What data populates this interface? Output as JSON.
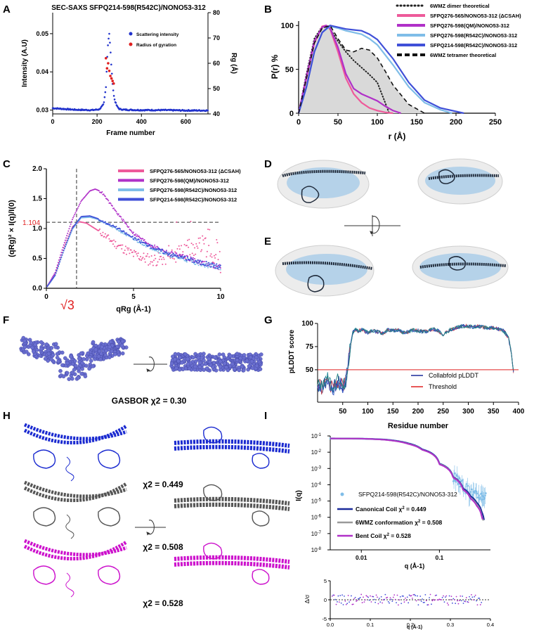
{
  "colors": {
    "blue": "#2233cc",
    "red": "#e02020",
    "pink": "#ee5a9a",
    "magenta": "#b030c8",
    "light_blue": "#7fbde8",
    "royal": "#4050d8",
    "navy": "#1a2a9a",
    "gray": "#888888",
    "fill": "#d9d9d9",
    "dark": "#333333",
    "molblue": "#a8cce8"
  },
  "panels": {
    "A": "A",
    "B": "B",
    "C": "C",
    "D": "D",
    "E": "E",
    "F": "F",
    "G": "G",
    "H": "H",
    "I": "I"
  },
  "chart_data": [
    {
      "id": "A",
      "type": "line",
      "title": "SEC-SAXS SFPQ214-598(R542C)/NONO53-312",
      "xlabel": "Frame number",
      "ylabel": "Intensity (A.U)",
      "y2label": "Rg (Å)",
      "xlim": [
        0,
        700
      ],
      "ylim": [
        0.029,
        0.0555
      ],
      "y2lim": [
        40,
        80
      ],
      "xticks": [
        "0",
        "200",
        "400",
        "600"
      ],
      "yticks": [
        "0.03",
        "0.04",
        "0.05"
      ],
      "y2ticks": [
        "40",
        "50",
        "60",
        "70",
        "80"
      ],
      "legend": [
        "Scattering intensity",
        "Radius of gyration"
      ],
      "series": [
        {
          "name": "Scattering intensity",
          "x": [
            0,
            100,
            180,
            210,
            230,
            240,
            245,
            250,
            255,
            260,
            265,
            270,
            275,
            280,
            290,
            300,
            320,
            400,
            500,
            600,
            700
          ],
          "y": [
            0.0305,
            0.0301,
            0.03,
            0.0302,
            0.0315,
            0.036,
            0.043,
            0.048,
            0.05,
            0.046,
            0.041,
            0.037,
            0.034,
            0.0325,
            0.031,
            0.0303,
            0.0301,
            0.03,
            0.03,
            0.0299,
            0.0299
          ]
        },
        {
          "name": "Radius of gyration",
          "x": [
            240,
            245,
            250,
            255,
            260,
            265,
            270,
            275
          ],
          "y": [
            62,
            58,
            60,
            57,
            55,
            54,
            53,
            52
          ]
        }
      ]
    },
    {
      "id": "B",
      "type": "area",
      "xlabel": "r (Å)",
      "ylabel": "P(r) %",
      "xlim": [
        0,
        250
      ],
      "ylim": [
        0,
        105
      ],
      "xticks": [
        "0",
        "50",
        "100",
        "150",
        "200",
        "250"
      ],
      "yticks": [
        "0",
        "50",
        "100"
      ],
      "series": [
        {
          "name": "6WMZ dimer theoretical",
          "x": [
            0,
            10,
            20,
            30,
            40,
            50,
            60,
            70,
            80,
            90,
            100,
            110,
            115
          ],
          "y": [
            0,
            45,
            85,
            99,
            96,
            82,
            70,
            60,
            52,
            44,
            35,
            12,
            0
          ]
        },
        {
          "name": "SFPQ276-565/NONO53-312 (ΔCSAH)",
          "x": [
            0,
            10,
            20,
            30,
            35,
            40,
            50,
            60,
            70,
            80,
            90,
            100,
            110,
            120
          ],
          "y": [
            0,
            40,
            80,
            99,
            100,
            96,
            70,
            40,
            22,
            12,
            6,
            3,
            1,
            0
          ]
        },
        {
          "name": "SFPQ276-598(QM)/NONO53-312",
          "x": [
            0,
            10,
            20,
            30,
            35,
            40,
            50,
            60,
            70,
            80,
            90,
            100,
            110,
            120,
            130
          ],
          "y": [
            0,
            42,
            82,
            98,
            100,
            97,
            75,
            45,
            28,
            22,
            18,
            14,
            8,
            3,
            0
          ]
        },
        {
          "name": "SFPQ276-598(R542C)/NONO53-312",
          "x": [
            0,
            10,
            20,
            30,
            40,
            50,
            60,
            70,
            80,
            90,
            100,
            120,
            140,
            160,
            180,
            195
          ],
          "y": [
            0,
            30,
            70,
            92,
            99,
            97,
            94,
            92,
            90,
            85,
            78,
            55,
            30,
            12,
            4,
            0
          ]
        },
        {
          "name": "SFPQ214-598(R542C)/NONO53-312",
          "x": [
            0,
            10,
            20,
            30,
            40,
            50,
            60,
            70,
            80,
            90,
            100,
            120,
            140,
            160,
            180,
            200,
            210
          ],
          "y": [
            0,
            30,
            70,
            92,
            100,
            98,
            96,
            95,
            94,
            90,
            84,
            62,
            35,
            15,
            6,
            2,
            0
          ]
        },
        {
          "name": "6WMZ tetramer theoretical",
          "x": [
            0,
            10,
            20,
            30,
            40,
            50,
            60,
            70,
            80,
            90,
            100,
            110,
            120,
            140,
            160
          ],
          "y": [
            0,
            40,
            80,
            97,
            100,
            85,
            72,
            70,
            74,
            72,
            63,
            48,
            32,
            10,
            0
          ]
        }
      ]
    },
    {
      "id": "C",
      "type": "scatter",
      "xlabel": "qRg (Å-1)",
      "ylabel": "(qRg)² × I(q)/I(0)",
      "xlim": [
        0,
        10
      ],
      "ylim": [
        0,
        2.0
      ],
      "xticks": [
        "0",
        "5",
        "10"
      ],
      "yticks": [
        "0.0",
        "0.5",
        "1.0",
        "1.5",
        "2.0"
      ],
      "annotations": {
        "hline_value": "1.104",
        "vline_label": "√3"
      },
      "series": [
        {
          "name": "SFPQ276-565/NONO53-312 (ΔCSAH)",
          "x": [
            0,
            0.5,
            1,
            1.5,
            1.9,
            2.3,
            3,
            4,
            5,
            6,
            7,
            8,
            9,
            10
          ],
          "y": [
            0,
            0.22,
            0.67,
            1.02,
            1.104,
            1.08,
            0.95,
            0.72,
            0.55,
            0.45,
            0.48,
            0.6,
            0.7,
            0.4
          ]
        },
        {
          "name": "SFPQ276-598(QM)/NONO53-312",
          "x": [
            0,
            0.5,
            1,
            1.5,
            2,
            2.5,
            2.8,
            3.2,
            4,
            5,
            6,
            7,
            8,
            9,
            10
          ],
          "y": [
            0,
            0.25,
            0.72,
            1.15,
            1.45,
            1.62,
            1.65,
            1.6,
            1.28,
            0.92,
            0.72,
            0.6,
            0.52,
            0.42,
            0.35
          ]
        },
        {
          "name": "SFPQ276-598(R542C)/NONO53-312",
          "x": [
            0,
            0.5,
            1,
            1.5,
            2,
            2.5,
            3,
            4,
            5,
            6,
            7,
            8,
            9,
            10
          ],
          "y": [
            0,
            0.2,
            0.62,
            0.98,
            1.17,
            1.18,
            1.14,
            1.0,
            0.82,
            0.68,
            0.56,
            0.48,
            0.4,
            0.35
          ]
        },
        {
          "name": "SFPQ214-598(R542C)/NONO53-312",
          "x": [
            0,
            0.5,
            1,
            1.5,
            2,
            2.5,
            3,
            4,
            5,
            6,
            7,
            8,
            9,
            10
          ],
          "y": [
            0,
            0.21,
            0.63,
            1.0,
            1.19,
            1.2,
            1.15,
            1.02,
            0.84,
            0.7,
            0.58,
            0.5,
            0.42,
            0.36
          ]
        }
      ]
    },
    {
      "id": "G",
      "type": "line",
      "xlabel": "Residue number",
      "ylabel": "pLDDT score",
      "xlim": [
        0,
        400
      ],
      "ylim": [
        15,
        100
      ],
      "xticks": [
        "50",
        "100",
        "150",
        "200",
        "250",
        "300",
        "350",
        "400"
      ],
      "yticks": [
        "50",
        "75",
        "100"
      ],
      "legend": [
        "Collabfold pLDDT",
        "Threshold"
      ],
      "series": [
        {
          "name": "Collabfold pLDDT",
          "x": [
            0,
            10,
            20,
            30,
            40,
            50,
            55,
            60,
            65,
            70,
            75,
            80,
            90,
            100,
            110,
            120,
            130,
            140,
            150,
            160,
            170,
            180,
            190,
            200,
            210,
            220,
            230,
            240,
            250,
            260,
            270,
            280,
            290,
            300,
            310,
            320,
            330,
            340,
            350,
            360,
            370,
            380,
            385,
            390
          ],
          "y": [
            35,
            30,
            40,
            28,
            38,
            32,
            35,
            50,
            75,
            90,
            94,
            92,
            93,
            90,
            92,
            91,
            89,
            93,
            92,
            93,
            90,
            91,
            93,
            92,
            91,
            92,
            94,
            92,
            88,
            92,
            94,
            96,
            97,
            97,
            96,
            97,
            96,
            95,
            95,
            94,
            92,
            85,
            70,
            48
          ]
        },
        {
          "name": "Threshold",
          "x": [
            0,
            400
          ],
          "y": [
            50,
            50
          ]
        }
      ]
    },
    {
      "id": "I",
      "type": "scatter",
      "xlabel": "q (Å-1)",
      "ylabel": "I(q)",
      "xscale": "log",
      "yscale": "log",
      "xlim": [
        0.004,
        0.45
      ],
      "ylim": [
        1e-08,
        0.1
      ],
      "xticks": [
        "0.01",
        "0.1"
      ],
      "yticks": [
        "10-8",
        "10-7",
        "10-6",
        "10-5",
        "10-4",
        "10-3",
        "10-2",
        "10-1"
      ],
      "legend": [
        "SFPQ214-598(R542C)/NONO53-312",
        "Canonical Coil",
        "6WMZ conformation",
        "Bent Coil"
      ],
      "chi2": [
        "0.449",
        "0.508",
        "0.528"
      ],
      "series": [
        {
          "name": "SFPQ214-598(R542C)/NONO53-312",
          "x": [
            0.004,
            0.01,
            0.02,
            0.04,
            0.06,
            0.1,
            0.15,
            0.2,
            0.25,
            0.3,
            0.35,
            0.4
          ],
          "y": [
            0.07,
            0.068,
            0.06,
            0.035,
            0.015,
            0.002,
            0.0003,
            8e-05,
            3e-05,
            2e-05,
            2e-05,
            2e-05
          ]
        },
        {
          "name": "Canonical Coil",
          "x": [
            0.004,
            0.01,
            0.02,
            0.04,
            0.06,
            0.1,
            0.15,
            0.2,
            0.25,
            0.3,
            0.35,
            0.38
          ],
          "y": [
            0.07,
            0.068,
            0.06,
            0.035,
            0.015,
            0.002,
            0.0003,
            6e-05,
            2e-05,
            8e-06,
            2e-06,
            3e-07
          ]
        },
        {
          "name": "6WMZ conformation",
          "x": [
            0.004,
            0.01,
            0.02,
            0.04,
            0.06,
            0.1,
            0.15,
            0.2,
            0.25,
            0.3,
            0.35,
            0.37
          ],
          "y": [
            0.07,
            0.068,
            0.058,
            0.033,
            0.014,
            0.0019,
            0.00028,
            5e-05,
            1.5e-05,
            6e-06,
            1e-06,
            5e-07
          ]
        },
        {
          "name": "Bent Coil",
          "x": [
            0.004,
            0.01,
            0.02,
            0.04,
            0.06,
            0.1,
            0.15,
            0.2,
            0.25,
            0.3,
            0.35,
            0.36
          ],
          "y": [
            0.07,
            0.068,
            0.058,
            0.032,
            0.014,
            0.0018,
            0.00027,
            5e-05,
            1.4e-05,
            5e-06,
            1e-06,
            6e-07
          ]
        }
      ],
      "residual": {
        "xlabel": "q (Å-1)",
        "ylabel": "Δ/σ",
        "xlim": [
          0,
          0.4
        ],
        "ylim": [
          -5,
          5
        ],
        "xticks": [
          "0.0",
          "0.1",
          "0.2",
          "0.3",
          "0.4"
        ],
        "yticks": [
          "-5",
          "0",
          "5"
        ]
      }
    }
  ],
  "panel_F": {
    "caption": "GASBOR χ2 = 0.30"
  },
  "panel_H": {
    "chi2_labels": [
      "χ2 = 0.449",
      "χ2 = 0.508",
      "χ2 = 0.528"
    ]
  }
}
